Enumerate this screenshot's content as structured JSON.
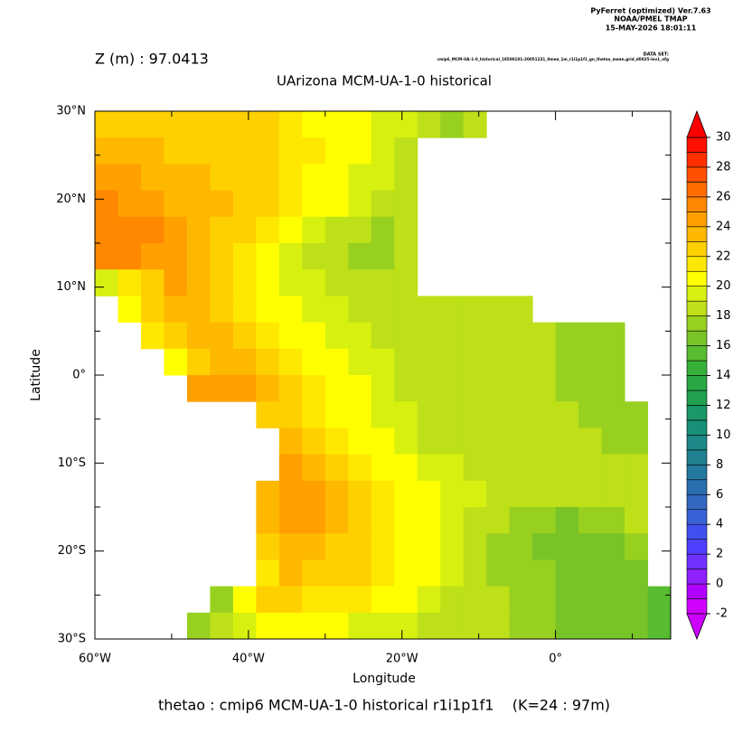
{
  "chart_data": {
    "type": "heatmap",
    "header": [
      "PyFerret (optimized) Ver.7.63",
      "NOAA/PMEL TMAP",
      "15-MAY-2026 18:01:11"
    ],
    "dataset_label": "DATA SET:",
    "dataset": "cmip6_MCM-UA-1-0_historical_18500101-20051231_0mea_1m_r1i1p1f1_gn_thetao_mean.grid_d0025-lev1_nfg",
    "depth_label": "Z (m) : 97.0413",
    "title": "UArizona MCM-UA-1-0 historical",
    "x_label": "Longitude",
    "y_label": "Latitude",
    "caption": "thetao : cmip6 MCM-UA-1-0 historical r1i1p1f1    (K=24 : 97m)",
    "x": [
      -58.5,
      -55.5,
      -52.5,
      -49.5,
      -46.5,
      -43.5,
      -40.5,
      -37.5,
      -34.5,
      -31.5,
      -28.5,
      -25.5,
      -22.5,
      -19.5,
      -16.5,
      -13.5,
      -10.5,
      -7.5,
      -4.5,
      -1.5,
      1.5,
      4.5,
      7.5,
      10.5,
      13.5
    ],
    "y": [
      28.5,
      25.5,
      22.5,
      19.5,
      16.5,
      13.5,
      10.5,
      7.5,
      4.5,
      1.5,
      -1.5,
      -4.5,
      -7.5,
      -10.5,
      -13.5,
      -16.5,
      -19.5,
      -22.5,
      -25.5,
      -28.5
    ],
    "values": [
      [
        22,
        22,
        22,
        22,
        22,
        22,
        22,
        22,
        21,
        20,
        20,
        20,
        19,
        19,
        18,
        17,
        18,
        null,
        null,
        null,
        null,
        null,
        null,
        null,
        null
      ],
      [
        23,
        23,
        23,
        22,
        22,
        22,
        22,
        22,
        21,
        21,
        20,
        20,
        19,
        18,
        null,
        null,
        null,
        null,
        null,
        null,
        null,
        null,
        null,
        null,
        null
      ],
      [
        24,
        24,
        23,
        23,
        23,
        22,
        22,
        22,
        21,
        20,
        20,
        19,
        19,
        18,
        null,
        null,
        null,
        null,
        null,
        null,
        null,
        null,
        null,
        null,
        null
      ],
      [
        25,
        24,
        24,
        23,
        23,
        23,
        22,
        22,
        21,
        20,
        20,
        19,
        18,
        18,
        null,
        null,
        null,
        null,
        null,
        null,
        null,
        null,
        null,
        null,
        null
      ],
      [
        25,
        25,
        25,
        24,
        23,
        22,
        22,
        21,
        20,
        19,
        18,
        18,
        17,
        18,
        null,
        null,
        null,
        null,
        null,
        null,
        null,
        null,
        null,
        null,
        null
      ],
      [
        25,
        25,
        24,
        24,
        23,
        22,
        21,
        20,
        19,
        18,
        18,
        17,
        17,
        18,
        null,
        null,
        null,
        null,
        null,
        null,
        null,
        null,
        null,
        null,
        null
      ],
      [
        19,
        21,
        22,
        24,
        23,
        22,
        21,
        20,
        19,
        19,
        18,
        18,
        18,
        18,
        null,
        null,
        null,
        null,
        null,
        null,
        null,
        null,
        null,
        null,
        null
      ],
      [
        null,
        20,
        22,
        23,
        23,
        22,
        21,
        20,
        20,
        19,
        19,
        18,
        18,
        18,
        18,
        18,
        18,
        18,
        18,
        null,
        null,
        null,
        null,
        null,
        null
      ],
      [
        null,
        null,
        21,
        22,
        23,
        23,
        22,
        21,
        20,
        20,
        19,
        19,
        18,
        18,
        18,
        18,
        18,
        18,
        18,
        18,
        17,
        17,
        17,
        null,
        null
      ],
      [
        null,
        null,
        null,
        20,
        22,
        23,
        23,
        22,
        21,
        20,
        20,
        19,
        19,
        18,
        18,
        18,
        18,
        18,
        18,
        18,
        17,
        17,
        17,
        null,
        null
      ],
      [
        null,
        null,
        null,
        null,
        24,
        24,
        24,
        23,
        22,
        21,
        20,
        20,
        19,
        18,
        18,
        18,
        18,
        18,
        18,
        18,
        17,
        17,
        17,
        null,
        null
      ],
      [
        null,
        null,
        null,
        null,
        null,
        null,
        null,
        22,
        22,
        21,
        20,
        20,
        19,
        19,
        18,
        18,
        18,
        18,
        18,
        18,
        18,
        17,
        17,
        17,
        null
      ],
      [
        null,
        null,
        null,
        null,
        null,
        null,
        null,
        null,
        23,
        22,
        21,
        20,
        20,
        19,
        18,
        18,
        18,
        18,
        18,
        18,
        18,
        18,
        17,
        17,
        null
      ],
      [
        null,
        null,
        null,
        null,
        null,
        null,
        null,
        null,
        24,
        23,
        22,
        21,
        20,
        20,
        19,
        19,
        18,
        18,
        18,
        18,
        18,
        18,
        18,
        18,
        null
      ],
      [
        null,
        null,
        null,
        null,
        null,
        null,
        null,
        23,
        24,
        24,
        23,
        22,
        21,
        20,
        20,
        19,
        19,
        18,
        18,
        18,
        18,
        18,
        18,
        18,
        null
      ],
      [
        null,
        null,
        null,
        null,
        null,
        null,
        null,
        23,
        24,
        24,
        23,
        22,
        21,
        20,
        20,
        19,
        18,
        18,
        17,
        17,
        16,
        17,
        17,
        18,
        null
      ],
      [
        null,
        null,
        null,
        null,
        null,
        null,
        null,
        22,
        23,
        23,
        22,
        22,
        21,
        20,
        20,
        19,
        18,
        17,
        17,
        16,
        16,
        16,
        16,
        17,
        null
      ],
      [
        null,
        null,
        null,
        null,
        null,
        null,
        null,
        21,
        23,
        22,
        22,
        22,
        21,
        20,
        20,
        19,
        18,
        17,
        17,
        17,
        16,
        16,
        16,
        16,
        null
      ],
      [
        null,
        null,
        null,
        null,
        null,
        17,
        20,
        22,
        22,
        21,
        21,
        21,
        20,
        20,
        19,
        18,
        18,
        18,
        17,
        17,
        16,
        16,
        16,
        16,
        15
      ],
      [
        null,
        null,
        null,
        null,
        17,
        18,
        19,
        20,
        20,
        20,
        20,
        19,
        19,
        19,
        18,
        18,
        18,
        18,
        17,
        17,
        16,
        16,
        16,
        16,
        15
      ]
    ],
    "xlim": [
      -60,
      15
    ],
    "ylim": [
      -30,
      30
    ],
    "xticks": [
      {
        "value": -60,
        "label": "60°W"
      },
      {
        "value": -40,
        "label": "40°W"
      },
      {
        "value": -20,
        "label": "20°W"
      },
      {
        "value": 0,
        "label": "0°"
      }
    ],
    "xminor": [
      -50,
      -30,
      -10,
      10
    ],
    "yticks": [
      {
        "value": -30,
        "label": "30°S"
      },
      {
        "value": -20,
        "label": "20°S"
      },
      {
        "value": -10,
        "label": "10°S"
      },
      {
        "value": 0,
        "label": "0°"
      },
      {
        "value": 10,
        "label": "10°N"
      },
      {
        "value": 20,
        "label": "20°N"
      },
      {
        "value": 30,
        "label": "30°N"
      }
    ],
    "yminor": [
      -25,
      -15,
      -5,
      5,
      15,
      25
    ],
    "clim": [
      -2,
      30
    ],
    "cticks": [
      30,
      28,
      26,
      24,
      22,
      20,
      18,
      16,
      14,
      12,
      10,
      8,
      6,
      4,
      2,
      0,
      -2
    ],
    "colors": [
      "#d000ff",
      "#b000ff",
      "#9020ff",
      "#7030ff",
      "#5040ff",
      "#4050f0",
      "#3a60d8",
      "#3468c0",
      "#2a70b0",
      "#2478a0",
      "#208090",
      "#1c8888",
      "#189078",
      "#1a9868",
      "#20a050",
      "#28a844",
      "#38b038",
      "#58bc30",
      "#78c428",
      "#98d020",
      "#bde018",
      "#d8f010",
      "#ffff00",
      "#ffe800",
      "#ffd000",
      "#ffb800",
      "#ffa000",
      "#ff8800",
      "#ff6c00",
      "#ff5000",
      "#ff3000",
      "#ff1000"
    ],
    "under_color": "#cc00ff",
    "over_color": "#ff0000"
  }
}
